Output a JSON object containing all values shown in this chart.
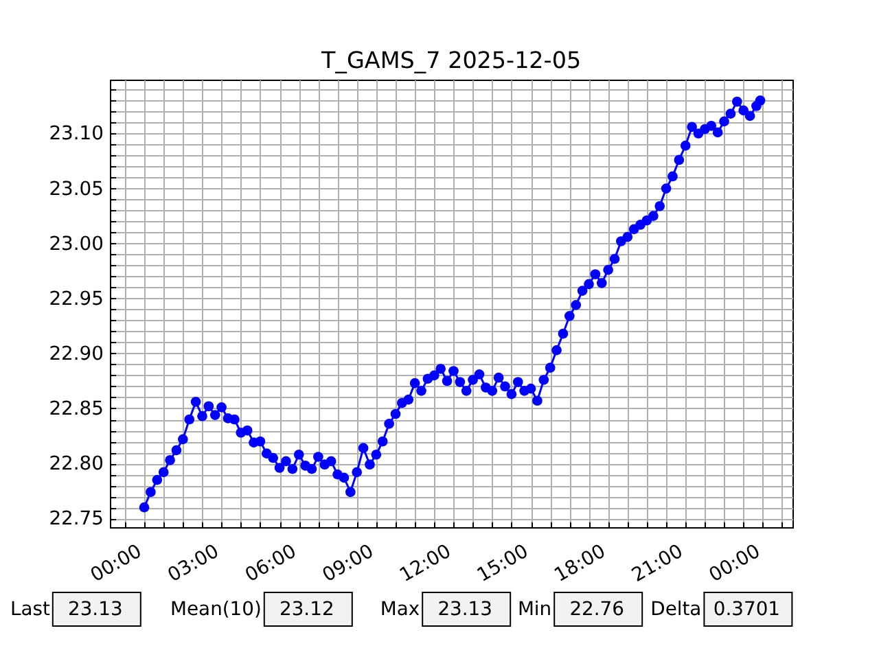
{
  "chart_data": {
    "type": "line",
    "title": "T_GAMS_7 2025-12-05",
    "marker": "circle",
    "line_style": "solid",
    "grid": true,
    "x": [
      "2025-12-05T00:00",
      "2025-12-05T00:15",
      "2025-12-05T00:30",
      "2025-12-05T00:45",
      "2025-12-05T01:00",
      "2025-12-05T01:15",
      "2025-12-05T01:30",
      "2025-12-05T01:45",
      "2025-12-05T02:00",
      "2025-12-05T02:15",
      "2025-12-05T02:30",
      "2025-12-05T02:45",
      "2025-12-05T03:00",
      "2025-12-05T03:15",
      "2025-12-05T03:30",
      "2025-12-05T03:45",
      "2025-12-05T04:00",
      "2025-12-05T04:15",
      "2025-12-05T04:30",
      "2025-12-05T04:45",
      "2025-12-05T05:00",
      "2025-12-05T05:15",
      "2025-12-05T05:30",
      "2025-12-05T05:45",
      "2025-12-05T06:00",
      "2025-12-05T06:15",
      "2025-12-05T06:30",
      "2025-12-05T06:45",
      "2025-12-05T07:00",
      "2025-12-05T07:15",
      "2025-12-05T07:30",
      "2025-12-05T07:45",
      "2025-12-05T08:00",
      "2025-12-05T08:15",
      "2025-12-05T08:30",
      "2025-12-05T08:45",
      "2025-12-05T09:00",
      "2025-12-05T09:15",
      "2025-12-05T09:30",
      "2025-12-05T09:45",
      "2025-12-05T10:00",
      "2025-12-05T10:15",
      "2025-12-05T10:30",
      "2025-12-05T10:45",
      "2025-12-05T11:00",
      "2025-12-05T11:15",
      "2025-12-05T11:30",
      "2025-12-05T11:45",
      "2025-12-05T12:00",
      "2025-12-05T12:15",
      "2025-12-05T12:30",
      "2025-12-05T12:45",
      "2025-12-05T13:00",
      "2025-12-05T13:15",
      "2025-12-05T13:30",
      "2025-12-05T13:45",
      "2025-12-05T14:00",
      "2025-12-05T14:15",
      "2025-12-05T14:30",
      "2025-12-05T14:45",
      "2025-12-05T15:00",
      "2025-12-05T15:15",
      "2025-12-05T15:30",
      "2025-12-05T15:45",
      "2025-12-05T16:00",
      "2025-12-05T16:15",
      "2025-12-05T16:30",
      "2025-12-05T16:45",
      "2025-12-05T17:00",
      "2025-12-05T17:15",
      "2025-12-05T17:30",
      "2025-12-05T17:45",
      "2025-12-05T18:00",
      "2025-12-05T18:15",
      "2025-12-05T18:30",
      "2025-12-05T18:45",
      "2025-12-05T19:00",
      "2025-12-05T19:15",
      "2025-12-05T19:30",
      "2025-12-05T19:45",
      "2025-12-05T20:00",
      "2025-12-05T20:15",
      "2025-12-05T20:30",
      "2025-12-05T20:45",
      "2025-12-05T21:00",
      "2025-12-05T21:15",
      "2025-12-05T21:30",
      "2025-12-05T21:45",
      "2025-12-05T22:00",
      "2025-12-05T22:15",
      "2025-12-05T22:30",
      "2025-12-05T22:45",
      "2025-12-05T23:00",
      "2025-12-05T23:15",
      "2025-12-05T23:30",
      "2025-12-05T23:45",
      "2025-12-05T23:54"
    ],
    "series": [
      {
        "color": "#0000ff",
        "values": [
          22.76,
          22.774,
          22.785,
          22.792,
          22.803,
          22.812,
          22.822,
          22.84,
          22.856,
          22.843,
          22.852,
          22.844,
          22.851,
          22.841,
          22.84,
          22.828,
          22.83,
          22.819,
          22.82,
          22.809,
          22.805,
          22.796,
          22.802,
          22.795,
          22.808,
          22.798,
          22.795,
          22.806,
          22.799,
          22.802,
          22.79,
          22.787,
          22.774,
          22.792,
          22.814,
          22.799,
          22.808,
          22.82,
          22.836,
          22.845,
          22.855,
          22.858,
          22.873,
          22.866,
          22.877,
          22.88,
          22.886,
          22.875,
          22.884,
          22.874,
          22.866,
          22.876,
          22.881,
          22.869,
          22.866,
          22.878,
          22.87,
          22.863,
          22.874,
          22.866,
          22.868,
          22.857,
          22.876,
          22.887,
          22.903,
          22.918,
          22.934,
          22.944,
          22.957,
          22.963,
          22.972,
          22.964,
          22.976,
          22.986,
          23.002,
          23.006,
          23.013,
          23.017,
          23.021,
          23.025,
          23.034,
          23.05,
          23.061,
          23.076,
          23.089,
          23.106,
          23.1,
          23.104,
          23.107,
          23.101,
          23.111,
          23.118,
          23.129,
          23.121,
          23.116,
          23.125,
          23.13
        ]
      }
    ],
    "xlim": [
      "2025-12-04T22:40",
      "2025-12-06T01:09"
    ],
    "xticks": [
      {
        "value": "2025-12-04T23:15",
        "label": null
      },
      {
        "value": "2025-12-05T00:00",
        "label": "00:00"
      },
      {
        "value": "2025-12-05T00:45",
        "label": null
      },
      {
        "value": "2025-12-05T01:30",
        "label": null
      },
      {
        "value": "2025-12-05T02:15",
        "label": null
      },
      {
        "value": "2025-12-05T03:00",
        "label": "03:00"
      },
      {
        "value": "2025-12-05T03:45",
        "label": null
      },
      {
        "value": "2025-12-05T04:30",
        "label": null
      },
      {
        "value": "2025-12-05T05:15",
        "label": null
      },
      {
        "value": "2025-12-05T06:00",
        "label": "06:00"
      },
      {
        "value": "2025-12-05T06:45",
        "label": null
      },
      {
        "value": "2025-12-05T07:30",
        "label": null
      },
      {
        "value": "2025-12-05T08:15",
        "label": null
      },
      {
        "value": "2025-12-05T09:00",
        "label": "09:00"
      },
      {
        "value": "2025-12-05T09:45",
        "label": null
      },
      {
        "value": "2025-12-05T10:30",
        "label": null
      },
      {
        "value": "2025-12-05T11:15",
        "label": null
      },
      {
        "value": "2025-12-05T12:00",
        "label": "12:00"
      },
      {
        "value": "2025-12-05T12:45",
        "label": null
      },
      {
        "value": "2025-12-05T13:30",
        "label": null
      },
      {
        "value": "2025-12-05T14:15",
        "label": null
      },
      {
        "value": "2025-12-05T15:00",
        "label": "15:00"
      },
      {
        "value": "2025-12-05T15:45",
        "label": null
      },
      {
        "value": "2025-12-05T16:30",
        "label": null
      },
      {
        "value": "2025-12-05T17:15",
        "label": null
      },
      {
        "value": "2025-12-05T18:00",
        "label": "18:00"
      },
      {
        "value": "2025-12-05T18:45",
        "label": null
      },
      {
        "value": "2025-12-05T19:30",
        "label": null
      },
      {
        "value": "2025-12-05T20:15",
        "label": null
      },
      {
        "value": "2025-12-05T21:00",
        "label": "21:00"
      },
      {
        "value": "2025-12-05T21:45",
        "label": null
      },
      {
        "value": "2025-12-05T22:30",
        "label": null
      },
      {
        "value": "2025-12-05T23:15",
        "label": null
      },
      {
        "value": "2025-12-06T00:00",
        "label": "00:00"
      },
      {
        "value": "2025-12-06T00:45",
        "label": null
      }
    ],
    "ylim": [
      22.742,
      23.149
    ],
    "yticks": [
      22.75,
      {
        "value": 22.76,
        "label": null
      },
      {
        "value": 22.77,
        "label": null
      },
      {
        "value": 22.78,
        "label": null
      },
      {
        "value": 22.79,
        "label": null
      },
      {
        "value": 22.8,
        "label": "22.80"
      },
      {
        "value": 22.81,
        "label": null
      },
      {
        "value": 22.82,
        "label": null
      },
      {
        "value": 22.83,
        "label": null
      },
      {
        "value": 22.84,
        "label": null
      },
      22.85,
      {
        "value": 22.86,
        "label": null
      },
      {
        "value": 22.87,
        "label": null
      },
      {
        "value": 22.88,
        "label": null
      },
      {
        "value": 22.89,
        "label": null
      },
      {
        "value": 22.9,
        "label": "22.90"
      },
      {
        "value": 22.91,
        "label": null
      },
      {
        "value": 22.92,
        "label": null
      },
      {
        "value": 22.93,
        "label": null
      },
      {
        "value": 22.94,
        "label": null
      },
      22.95,
      {
        "value": 22.96,
        "label": null
      },
      {
        "value": 22.97,
        "label": null
      },
      {
        "value": 22.98,
        "label": null
      },
      {
        "value": 22.99,
        "label": null
      },
      {
        "value": 23.0,
        "label": "23.00"
      },
      {
        "value": 23.01,
        "label": null
      },
      {
        "value": 23.02,
        "label": null
      },
      {
        "value": 23.03,
        "label": null
      },
      {
        "value": 23.04,
        "label": null
      },
      23.05,
      {
        "value": 23.06,
        "label": null
      },
      {
        "value": 23.07,
        "label": null
      },
      {
        "value": 23.08,
        "label": null
      },
      {
        "value": 23.09,
        "label": null
      },
      {
        "value": 23.1,
        "label": "23.10"
      },
      {
        "value": 23.11,
        "label": null
      },
      {
        "value": 23.12,
        "label": null
      },
      {
        "value": 23.13,
        "label": null
      },
      {
        "value": 23.14,
        "label": null
      }
    ],
    "annotations": [
      "Last",
      "23.13",
      "Mean(10)",
      "23.12",
      "Max",
      "23.13",
      "Min",
      "22.76",
      "Delta",
      "0.3701"
    ]
  }
}
